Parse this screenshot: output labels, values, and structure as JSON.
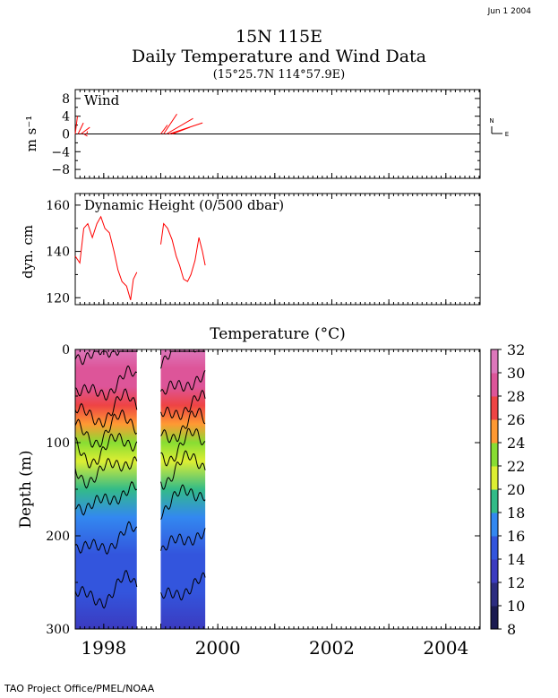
{
  "header": {
    "date": "Jun  1 2004",
    "site": "15N 115E",
    "title": "Daily Temperature and Wind Data",
    "coords": "(15°25.7N    114°57.9E)"
  },
  "footer": "TAO Project Office/PMEL/NOAA",
  "compass": {
    "north": "N",
    "east": "E"
  },
  "colors": {
    "series": "#ff0000",
    "axis": "#000000",
    "contour": "#000000"
  },
  "chart_data": [
    {
      "type": "line",
      "panel": "wind",
      "title": "Wind",
      "ylabel": "m s⁻¹",
      "ylim": [
        -10,
        10
      ],
      "yticks": [
        "8",
        "4",
        "0",
        "−4",
        "−8"
      ],
      "xlim": [
        1997.5,
        2004.6
      ],
      "x_ticks": [
        1998,
        2000,
        2002,
        2004
      ],
      "grid": false,
      "series": [
        {
          "segment": 1,
          "x": [
            1997.5,
            1997.55,
            1997.6,
            1997.65,
            1997.7
          ],
          "u": [
            0.5,
            1.2,
            2.0,
            0.8,
            0.2
          ],
          "v": [
            4.0,
            2.5,
            1.5,
            -0.5,
            0.6
          ]
        },
        {
          "segment": 2,
          "x": [
            1999.0,
            1999.05,
            1999.1,
            1999.15,
            1999.2
          ],
          "u": [
            1.5,
            3.0,
            6.0,
            7.5,
            4.0
          ],
          "v": [
            2.0,
            4.5,
            3.5,
            2.5,
            1.5
          ]
        }
      ]
    },
    {
      "type": "line",
      "panel": "dynamic_height",
      "title": "Dynamic Height (0/500 dbar)",
      "ylabel": "dyn. cm",
      "ylim": [
        117,
        165
      ],
      "yticks": [
        120,
        140,
        160
      ],
      "xlim": [
        1997.5,
        2004.6
      ],
      "grid": false,
      "series": [
        {
          "segment": 1,
          "x": [
            1997.5,
            1997.58,
            1997.65,
            1997.72,
            1997.8,
            1997.88,
            1997.95,
            1998.02,
            1998.1,
            1998.18,
            1998.25,
            1998.32,
            1998.4,
            1998.47,
            1998.52,
            1998.58
          ],
          "values": [
            138,
            135,
            150,
            152,
            146,
            152,
            155,
            150,
            148,
            140,
            132,
            127,
            125,
            119,
            128,
            131
          ]
        },
        {
          "segment": 2,
          "x": [
            1999.0,
            1999.05,
            1999.12,
            1999.2,
            1999.27,
            1999.33,
            1999.4,
            1999.47,
            1999.53,
            1999.6,
            1999.67,
            1999.73,
            1999.78
          ],
          "values": [
            143,
            152,
            150,
            145,
            138,
            134,
            128,
            127,
            130,
            136,
            146,
            140,
            134
          ]
        }
      ]
    },
    {
      "type": "heatmap",
      "panel": "temperature",
      "title": "Temperature (°C)",
      "ylabel": "Depth (m)",
      "ylim": [
        300,
        0
      ],
      "yticks": [
        0,
        100,
        200,
        300
      ],
      "xlim": [
        1997.5,
        2004.6
      ],
      "x_ticks": [
        1998,
        2000,
        2002,
        2004
      ],
      "colorbar": {
        "min": 8,
        "max": 32,
        "ticks": [
          32,
          30,
          28,
          26,
          24,
          22,
          20,
          18,
          16,
          14,
          12,
          10,
          8
        ]
      },
      "depth_profile": [
        {
          "depth": 0,
          "temp": 30
        },
        {
          "depth": 20,
          "temp": 29
        },
        {
          "depth": 40,
          "temp": 28
        },
        {
          "depth": 60,
          "temp": 26.5
        },
        {
          "depth": 80,
          "temp": 24.5
        },
        {
          "depth": 100,
          "temp": 22.5
        },
        {
          "depth": 120,
          "temp": 20.5
        },
        {
          "depth": 150,
          "temp": 18.5
        },
        {
          "depth": 180,
          "temp": 17
        },
        {
          "depth": 220,
          "temp": 15.5
        },
        {
          "depth": 260,
          "temp": 14
        },
        {
          "depth": 300,
          "temp": 12.5
        }
      ],
      "data_segments": [
        [
          1997.5,
          1998.58
        ],
        [
          1999.0,
          1999.78
        ]
      ]
    }
  ]
}
